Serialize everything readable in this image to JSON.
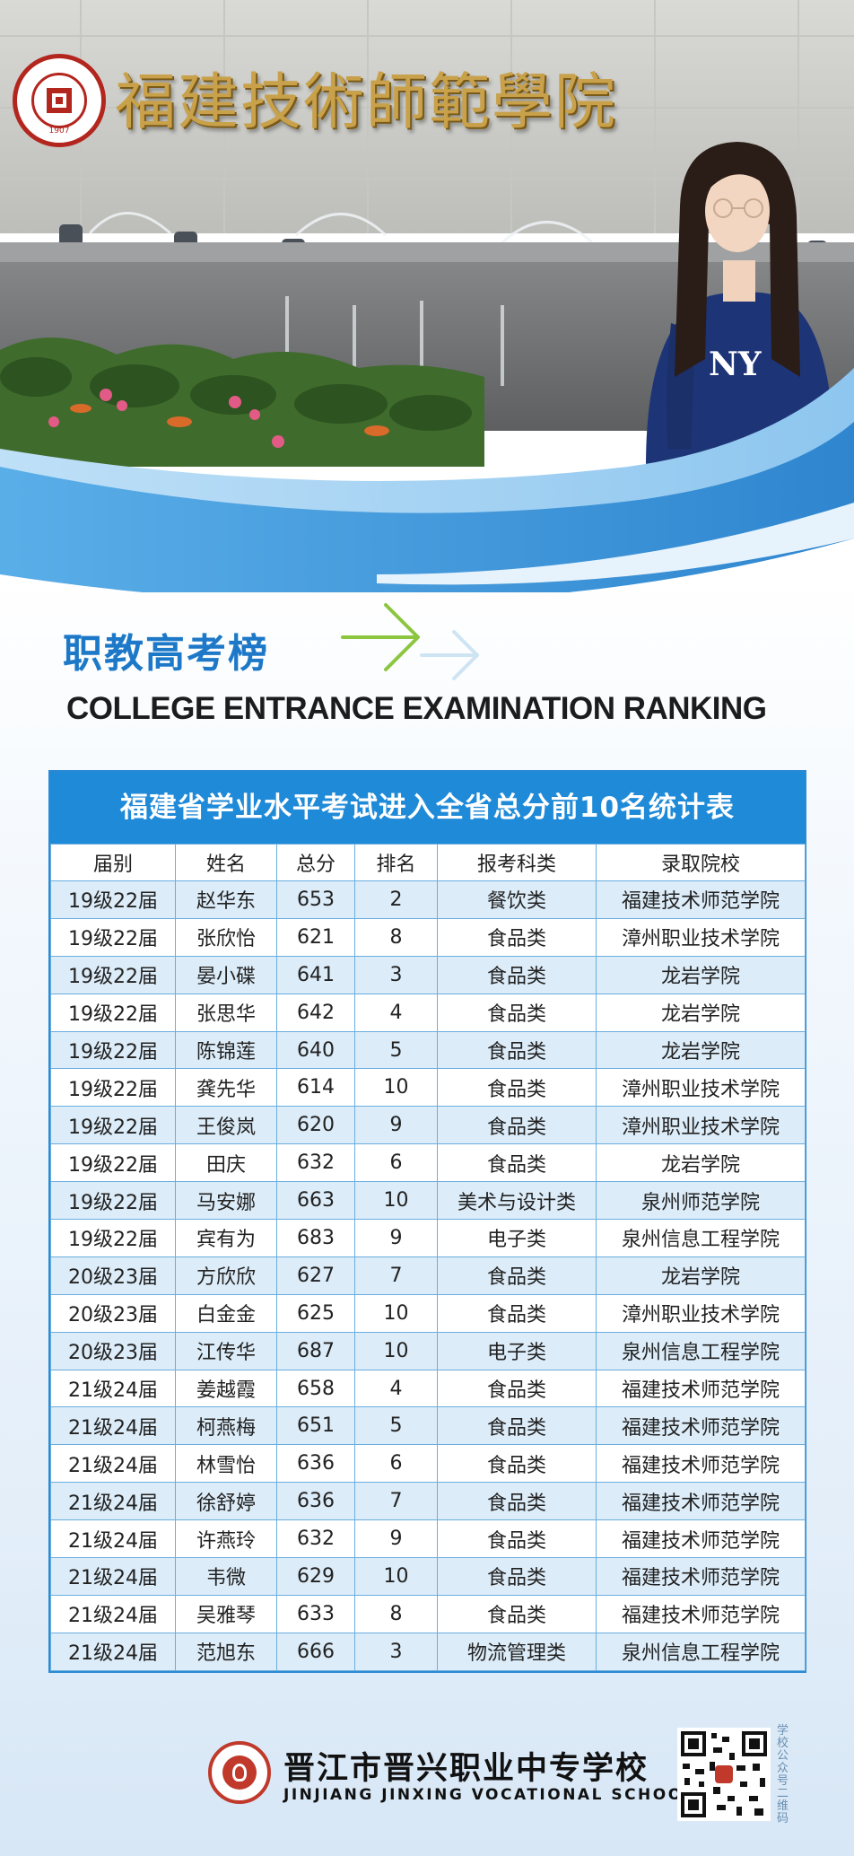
{
  "hero": {
    "sign_text": "福建技術師範學院",
    "seal_year": "1907"
  },
  "heading": {
    "title_cn": "职教高考榜",
    "title_en": "COLLEGE ENTRANCE EXAMINATION RANKING"
  },
  "table": {
    "title": "福建省学业水平考试进入全省总分前10名统计表",
    "headers": [
      "届别",
      "姓名",
      "总分",
      "排名",
      "报考科类",
      "录取院校"
    ],
    "rows": [
      [
        "19级22届",
        "赵华东",
        "653",
        "2",
        "餐饮类",
        "福建技术师范学院"
      ],
      [
        "19级22届",
        "张欣怡",
        "621",
        "8",
        "食品类",
        "漳州职业技术学院"
      ],
      [
        "19级22届",
        "晏小碟",
        "641",
        "3",
        "食品类",
        "龙岩学院"
      ],
      [
        "19级22届",
        "张思华",
        "642",
        "4",
        "食品类",
        "龙岩学院"
      ],
      [
        "19级22届",
        "陈锦莲",
        "640",
        "5",
        "食品类",
        "龙岩学院"
      ],
      [
        "19级22届",
        "龚先华",
        "614",
        "10",
        "食品类",
        "漳州职业技术学院"
      ],
      [
        "19级22届",
        "王俊岚",
        "620",
        "9",
        "食品类",
        "漳州职业技术学院"
      ],
      [
        "19级22届",
        "田庆",
        "632",
        "6",
        "食品类",
        "龙岩学院"
      ],
      [
        "19级22届",
        "马安娜",
        "663",
        "10",
        "美术与设计类",
        "泉州师范学院"
      ],
      [
        "19级22届",
        "宾有为",
        "683",
        "9",
        "电子类",
        "泉州信息工程学院"
      ],
      [
        "20级23届",
        "方欣欣",
        "627",
        "7",
        "食品类",
        "龙岩学院"
      ],
      [
        "20级23届",
        "白金金",
        "625",
        "10",
        "食品类",
        "漳州职业技术学院"
      ],
      [
        "20级23届",
        "江传华",
        "687",
        "10",
        "电子类",
        "泉州信息工程学院"
      ],
      [
        "21级24届",
        "姜越霞",
        "658",
        "4",
        "食品类",
        "福建技术师范学院"
      ],
      [
        "21级24届",
        "柯燕梅",
        "651",
        "5",
        "食品类",
        "福建技术师范学院"
      ],
      [
        "21级24届",
        "林雪怡",
        "636",
        "6",
        "食品类",
        "福建技术师范学院"
      ],
      [
        "21级24届",
        "徐舒婷",
        "636",
        "7",
        "食品类",
        "福建技术师范学院"
      ],
      [
        "21级24届",
        "许燕玲",
        "632",
        "9",
        "食品类",
        "福建技术师范学院"
      ],
      [
        "21级24届",
        "韦微",
        "629",
        "10",
        "食品类",
        "福建技术师范学院"
      ],
      [
        "21级24届",
        "吴雅琴",
        "633",
        "8",
        "食品类",
        "福建技术师范学院"
      ],
      [
        "21级24届",
        "范旭东",
        "666",
        "3",
        "物流管理类",
        "泉州信息工程学院"
      ]
    ]
  },
  "footer": {
    "school_cn": "晋江市晋兴职业中专学校",
    "school_en": "JINJIANG JINXING VOCATIONAL SCHOOL",
    "qr_label": "学校公众号二维码"
  },
  "colors": {
    "accent_blue": "#1f8ad8",
    "title_blue": "#1d79c8",
    "arrow_green": "#8cc63f",
    "row_stripe": "#dcecf8"
  },
  "icons": [
    "right-arrow-icon",
    "qr-code-icon",
    "school-emblem-icon",
    "university-seal-icon"
  ]
}
